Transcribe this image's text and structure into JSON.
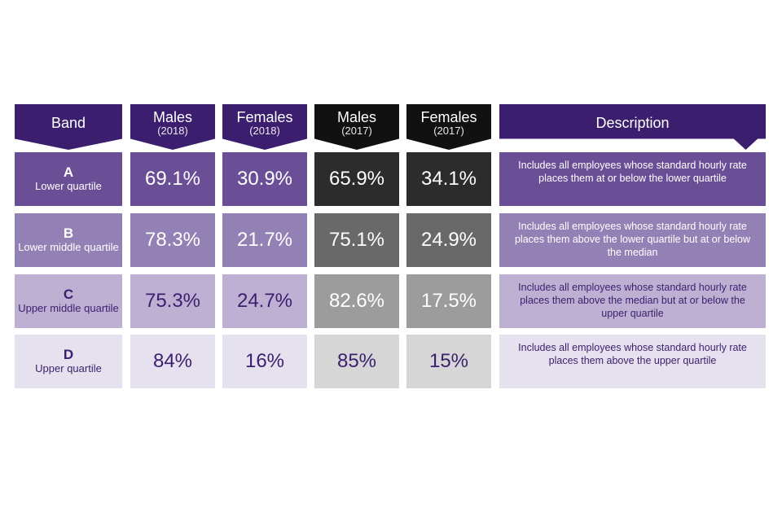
{
  "colors": {
    "header_purple": "#3b1f6e",
    "header_black": "#111111",
    "row_purple": [
      "#6a4f96",
      "#9380b5",
      "#bdb0d3",
      "#e6e1ee"
    ],
    "row_gray": [
      "#2c2c2c",
      "#696969",
      "#9c9c9c",
      "#d6d6d6"
    ],
    "row_text_light": "#ffffff",
    "row_text_dark": "#3b1f6e"
  },
  "headers": {
    "band": "Band",
    "males_2018": {
      "label": "Males",
      "year": "(2018)"
    },
    "females_2018": {
      "label": "Females",
      "year": "(2018)"
    },
    "males_2017": {
      "label": "Males",
      "year": "(2017)"
    },
    "females_2017": {
      "label": "Females",
      "year": "(2017)"
    },
    "description": "Description"
  },
  "chart_data": {
    "type": "table",
    "columns": [
      "Band",
      "Males (2018)",
      "Females (2018)",
      "Males (2017)",
      "Females (2017)",
      "Description"
    ],
    "rows": [
      {
        "letter": "A",
        "name": "Lower quartile",
        "males_2018": "69.1%",
        "females_2018": "30.9%",
        "males_2017": "65.9%",
        "females_2017": "34.1%",
        "description": "Includes all employees whose standard hourly rate places them at or below the lower quartile"
      },
      {
        "letter": "B",
        "name": "Lower middle quartile",
        "males_2018": "78.3%",
        "females_2018": "21.7%",
        "males_2017": "75.1%",
        "females_2017": "24.9%",
        "description": "Includes all employees whose standard hourly rate places them above the lower quartile but at or below the median"
      },
      {
        "letter": "C",
        "name": "Upper middle quartile",
        "males_2018": "75.3%",
        "females_2018": "24.7%",
        "males_2017": "82.6%",
        "females_2017": "17.5%",
        "description": "Includes all employees whose standard hourly rate places them above the median but at or below the upper quartile"
      },
      {
        "letter": "D",
        "name": "Upper quartile",
        "males_2018": "84%",
        "females_2018": "16%",
        "males_2017": "85%",
        "females_2017": "15%",
        "description": "Includes all employees whose standard hourly rate places them above the upper quartile"
      }
    ]
  }
}
